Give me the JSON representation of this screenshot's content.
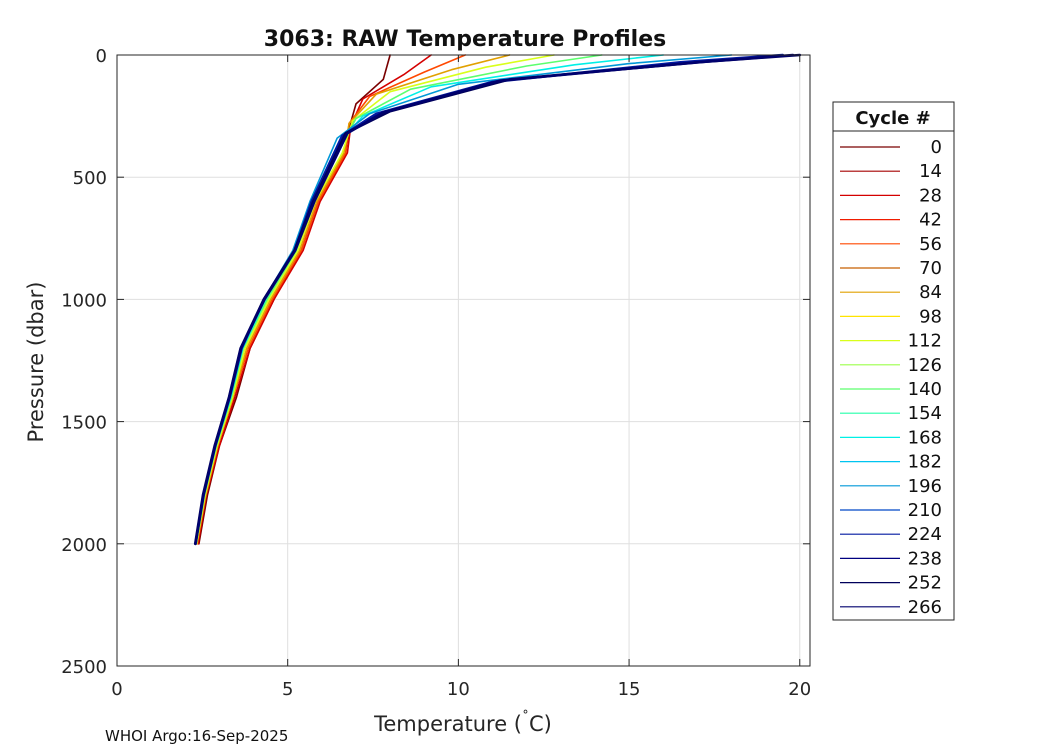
{
  "chart_data": {
    "type": "line",
    "title": "3063: RAW Temperature Profiles",
    "xlabel_pre": "Temperature (",
    "xlabel_degree": "˚",
    "xlabel_post": "C)",
    "ylabel": "Pressure (dbar)",
    "xlim": [
      0,
      20.3
    ],
    "ylim": [
      0,
      2500
    ],
    "y_reversed": true,
    "grid": true,
    "x_ticks": [
      0,
      5,
      10,
      15,
      20
    ],
    "y_ticks": [
      0,
      500,
      1000,
      1500,
      2000,
      2500
    ],
    "legend": {
      "title": "Cycle #",
      "placement": "right-outside",
      "cycles": [
        "0",
        "14",
        "28",
        "42",
        "56",
        "70",
        "84",
        "98",
        "112",
        "126",
        "140",
        "154",
        "168",
        "182",
        "196",
        "210",
        "224",
        "238",
        "252",
        "266"
      ],
      "colors": [
        "#7a0000",
        "#a50000",
        "#d40000",
        "#f01c00",
        "#ff4800",
        "#c85f00",
        "#e1a000",
        "#ffe400",
        "#d9ff1a",
        "#9cff4a",
        "#5cff6e",
        "#24ffaa",
        "#00f0e6",
        "#00c4f0",
        "#0098d8",
        "#0048c8",
        "#0018a0",
        "#000080",
        "#00005a",
        "#00006e"
      ]
    },
    "series": [
      {
        "name": "0",
        "color": "#7a0000",
        "temperature": [
          8.0,
          7.8,
          7.0,
          6.8,
          6.7,
          5.9,
          5.4,
          4.6,
          3.9,
          3.5,
          3.0,
          2.65,
          2.4
        ],
        "pressure": [
          0,
          100,
          200,
          300,
          400,
          600,
          800,
          1000,
          1200,
          1400,
          1600,
          1800,
          2000
        ]
      },
      {
        "name": "28",
        "color": "#d40000",
        "temperature": [
          9.2,
          8.4,
          7.2,
          6.85,
          6.75,
          5.95,
          5.45,
          4.6,
          3.9,
          3.45,
          3.0,
          2.62,
          2.38
        ],
        "pressure": [
          0,
          80,
          180,
          290,
          400,
          600,
          800,
          1000,
          1200,
          1400,
          1600,
          1800,
          2000
        ]
      },
      {
        "name": "56",
        "color": "#ff4800",
        "temperature": [
          10.2,
          9.0,
          7.4,
          6.8,
          6.7,
          5.9,
          5.4,
          4.55,
          3.85,
          3.4,
          2.95,
          2.6,
          2.35
        ],
        "pressure": [
          0,
          70,
          170,
          280,
          400,
          600,
          800,
          1000,
          1200,
          1400,
          1600,
          1800,
          2000
        ]
      },
      {
        "name": "84",
        "color": "#e1a000",
        "temperature": [
          11.5,
          9.8,
          7.6,
          6.8,
          6.65,
          5.85,
          5.35,
          4.5,
          3.8,
          3.4,
          2.95,
          2.6,
          2.34
        ],
        "pressure": [
          0,
          60,
          160,
          280,
          400,
          600,
          800,
          1000,
          1200,
          1400,
          1600,
          1800,
          2000
        ]
      },
      {
        "name": "112",
        "color": "#d9ff1a",
        "temperature": [
          12.8,
          10.8,
          8.0,
          6.9,
          6.6,
          5.8,
          5.3,
          4.45,
          3.75,
          3.38,
          2.93,
          2.58,
          2.33
        ],
        "pressure": [
          0,
          50,
          150,
          270,
          400,
          600,
          800,
          1000,
          1200,
          1400,
          1600,
          1800,
          2000
        ]
      },
      {
        "name": "140",
        "color": "#5cff6e",
        "temperature": [
          14.2,
          12.0,
          8.6,
          7.0,
          6.55,
          5.75,
          5.25,
          4.4,
          3.7,
          3.35,
          2.9,
          2.56,
          2.32
        ],
        "pressure": [
          0,
          45,
          140,
          260,
          380,
          600,
          800,
          1000,
          1200,
          1400,
          1600,
          1800,
          2000
        ]
      },
      {
        "name": "168",
        "color": "#00f0e6",
        "temperature": [
          16.0,
          13.4,
          9.2,
          7.2,
          6.5,
          5.7,
          5.2,
          4.35,
          3.68,
          3.33,
          2.9,
          2.55,
          2.31
        ],
        "pressure": [
          0,
          40,
          130,
          250,
          360,
          600,
          800,
          1000,
          1200,
          1400,
          1600,
          1800,
          2000
        ]
      },
      {
        "name": "196",
        "color": "#0098d8",
        "temperature": [
          18.0,
          15.0,
          10.0,
          7.4,
          6.45,
          5.65,
          5.15,
          4.3,
          3.65,
          3.3,
          2.88,
          2.54,
          2.3
        ],
        "pressure": [
          0,
          35,
          120,
          240,
          340,
          600,
          800,
          1000,
          1200,
          1400,
          1600,
          1800,
          2000
        ]
      },
      {
        "name": "224",
        "color": "#0018a0",
        "temperature": [
          19.5,
          16.5,
          11.0,
          7.6,
          6.6,
          5.7,
          5.2,
          4.3,
          3.65,
          3.3,
          2.88,
          2.54,
          2.3
        ],
        "pressure": [
          0,
          30,
          110,
          240,
          330,
          600,
          800,
          1000,
          1200,
          1400,
          1600,
          1800,
          2000
        ]
      },
      {
        "name": "252",
        "color": "#00005a",
        "temperature": [
          20.0,
          17.2,
          11.5,
          8.0,
          6.7,
          5.75,
          5.2,
          4.3,
          3.62,
          3.28,
          2.86,
          2.52,
          2.29
        ],
        "pressure": [
          0,
          28,
          100,
          230,
          320,
          600,
          800,
          1000,
          1200,
          1400,
          1600,
          1800,
          2000
        ]
      },
      {
        "name": "266",
        "color": "#00006e",
        "temperature": [
          19.8,
          17.0,
          11.2,
          7.8,
          6.75,
          5.78,
          5.22,
          4.32,
          3.63,
          3.29,
          2.87,
          2.53,
          2.3
        ],
        "pressure": [
          0,
          30,
          105,
          235,
          320,
          600,
          800,
          1000,
          1200,
          1400,
          1600,
          1800,
          2000
        ]
      }
    ]
  },
  "footer": "WHOI Argo:16-Sep-2025"
}
